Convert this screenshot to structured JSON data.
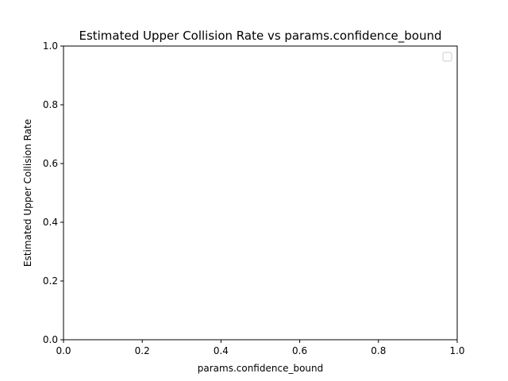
{
  "chart_data": {
    "type": "line",
    "title": "Estimated Upper Collision Rate vs params.confidence_bound",
    "xlabel": "params.confidence_bound",
    "ylabel": "Estimated Upper Collision Rate",
    "xlim": [
      0.0,
      1.0
    ],
    "ylim": [
      0.0,
      1.0
    ],
    "xticks": [
      "0.0",
      "0.2",
      "0.4",
      "0.6",
      "0.8",
      "1.0"
    ],
    "yticks": [
      "0.0",
      "0.2",
      "0.4",
      "0.6",
      "0.8",
      "1.0"
    ],
    "series": [],
    "grid": false,
    "legend": "top-right, empty"
  }
}
